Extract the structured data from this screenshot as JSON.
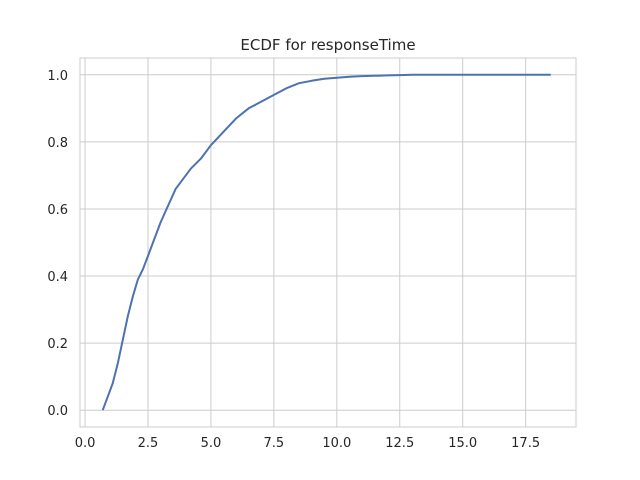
{
  "chart_data": {
    "type": "line",
    "title": "ECDF for responseTime",
    "xlabel": "",
    "ylabel": "",
    "xlim": [
      -0.2,
      19.5
    ],
    "ylim": [
      -0.05,
      1.05
    ],
    "grid": true,
    "line_color": "#4c72b0",
    "x_ticks": [
      0.0,
      2.5,
      5.0,
      7.5,
      10.0,
      12.5,
      15.0,
      17.5
    ],
    "x_tick_labels": [
      "0.0",
      "2.5",
      "5.0",
      "7.5",
      "10.0",
      "12.5",
      "15.0",
      "17.5"
    ],
    "y_ticks": [
      0.0,
      0.2,
      0.4,
      0.6,
      0.8,
      1.0
    ],
    "y_tick_labels": [
      "0.0",
      "0.2",
      "0.4",
      "0.6",
      "0.8",
      "1.0"
    ],
    "series": [
      {
        "x": [
          0.7,
          0.9,
          1.1,
          1.3,
          1.5,
          1.7,
          1.9,
          2.1,
          2.3,
          2.5,
          2.7,
          3.0,
          3.3,
          3.6,
          3.9,
          4.2,
          4.6,
          5.0,
          5.5,
          6.0,
          6.5,
          7.0,
          7.5,
          8.0,
          8.5,
          9.0,
          9.5,
          10.0,
          10.5,
          11.0,
          11.5,
          12.0,
          12.5,
          13.0,
          14.0,
          15.0,
          16.0,
          17.0,
          18.5
        ],
        "y": [
          0.0,
          0.04,
          0.08,
          0.14,
          0.21,
          0.28,
          0.34,
          0.39,
          0.42,
          0.46,
          0.5,
          0.56,
          0.61,
          0.66,
          0.69,
          0.72,
          0.75,
          0.79,
          0.83,
          0.87,
          0.9,
          0.92,
          0.94,
          0.96,
          0.975,
          0.982,
          0.988,
          0.991,
          0.994,
          0.996,
          0.997,
          0.998,
          0.999,
          1.0,
          1.0,
          1.0,
          1.0,
          1.0,
          1.0
        ]
      }
    ]
  }
}
